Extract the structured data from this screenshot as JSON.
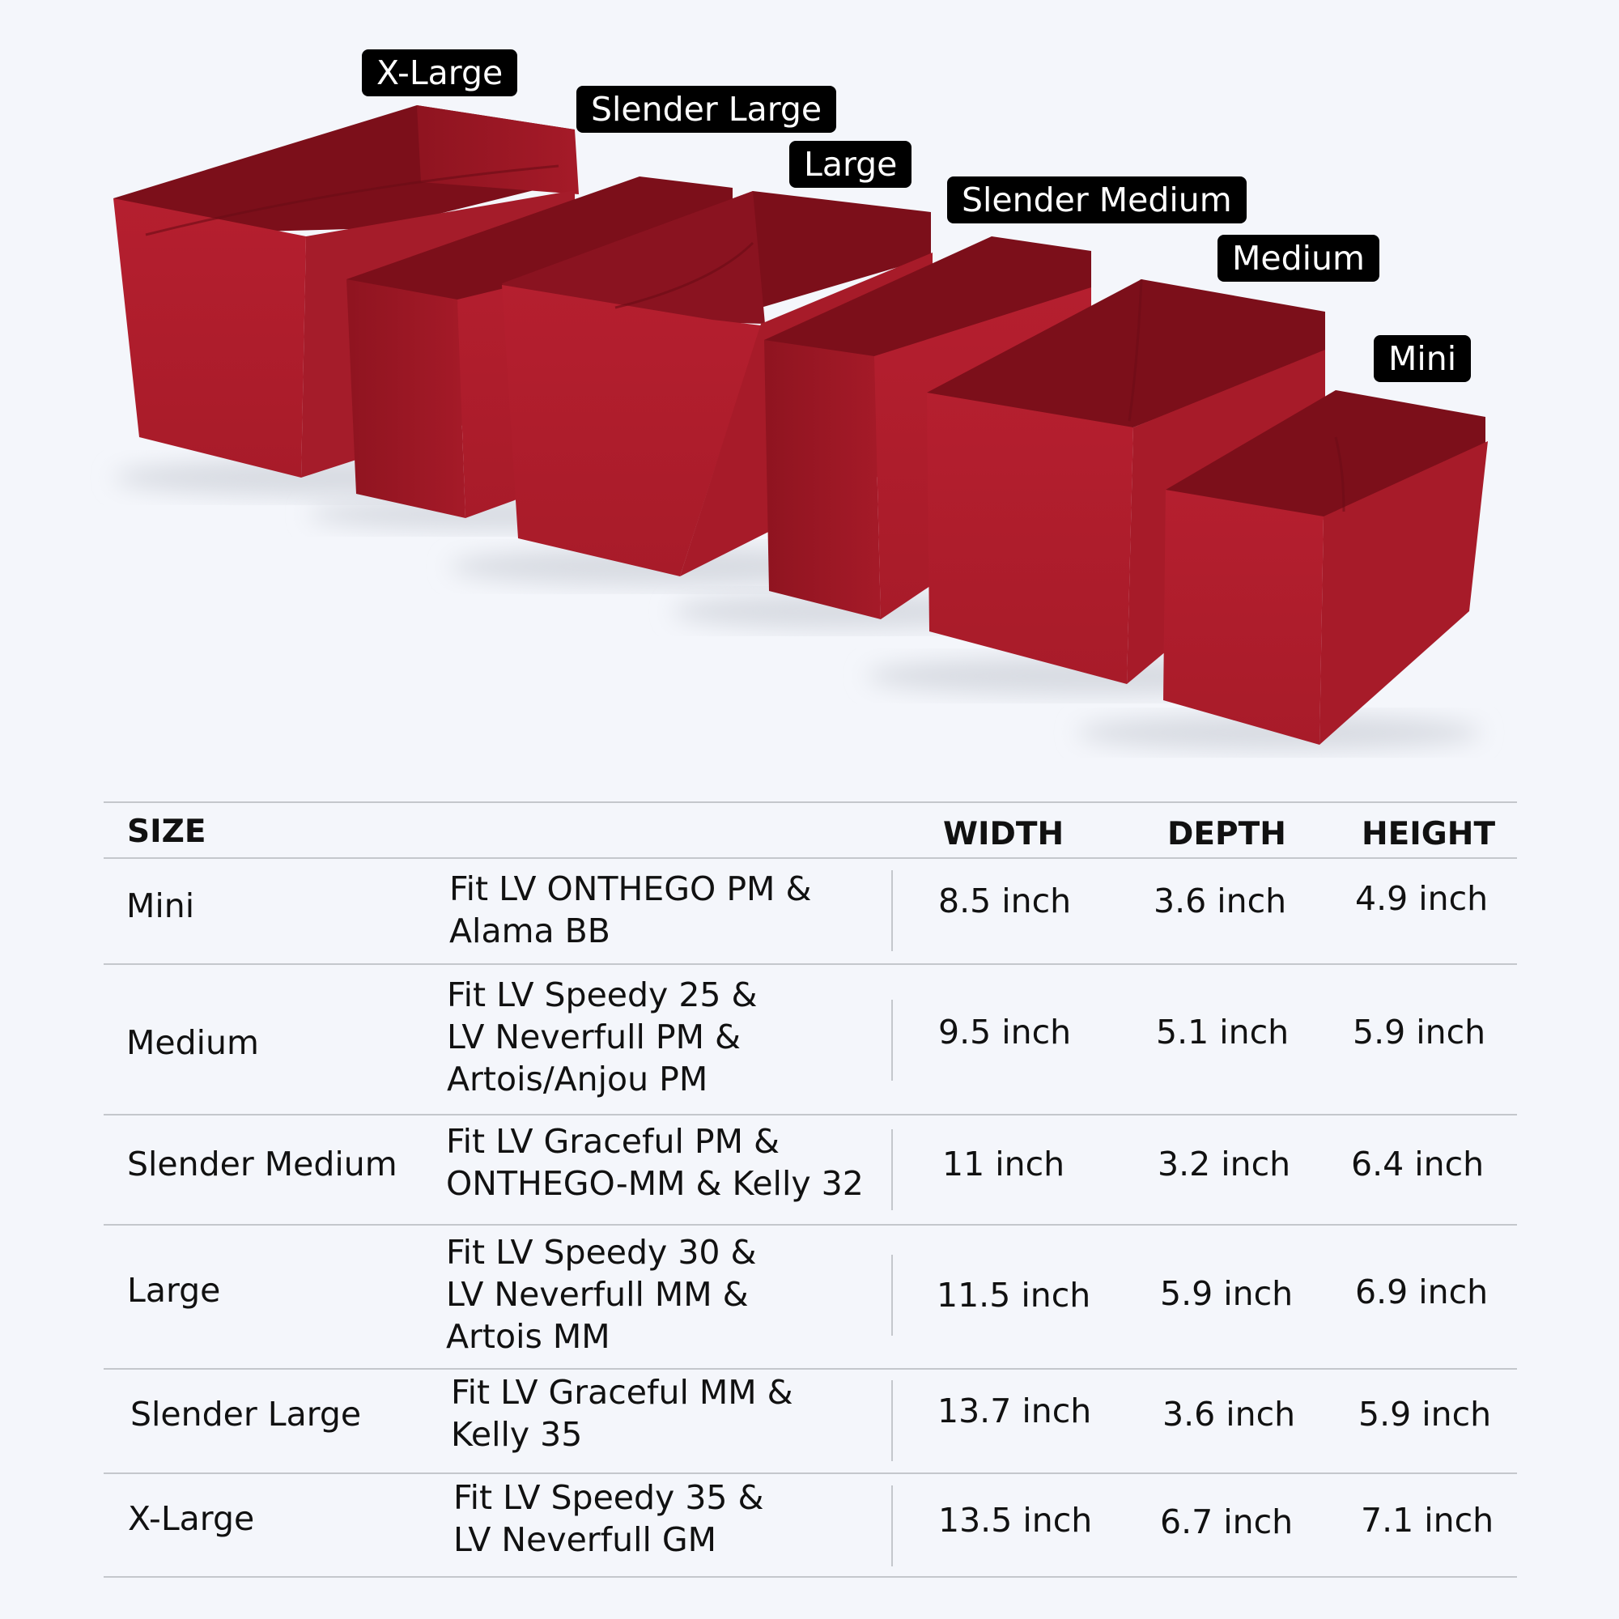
{
  "colors": {
    "background": "#f4f6fb",
    "product": "#b01e2d",
    "label_bg": "#000000",
    "label_text": "#ffffff",
    "rule": "#c4c7cc"
  },
  "product_labels": [
    "X-Large",
    "Slender Large",
    "Large",
    "Slender Medium",
    "Medium",
    "Mini"
  ],
  "table": {
    "headers": {
      "size": "SIZE",
      "width": "WIDTH",
      "depth": "DEPTH",
      "height": "HEIGHT"
    },
    "rows": [
      {
        "size": "Mini",
        "fit": [
          "Fit LV ONTHEGO PM &",
          "Alama BB"
        ],
        "width": "8.5 inch",
        "depth": "3.6 inch",
        "height": "4.9 inch"
      },
      {
        "size": "Medium",
        "fit": [
          "Fit LV Speedy 25 &",
          "LV Neverfull PM &",
          "Artois/Anjou PM"
        ],
        "width": "9.5 inch",
        "depth": "5.1 inch",
        "height": "5.9 inch"
      },
      {
        "size": "Slender Medium",
        "fit": [
          "Fit LV Graceful PM &",
          "ONTHEGO-MM & Kelly 32"
        ],
        "width": "11 inch",
        "depth": "3.2 inch",
        "height": "6.4 inch"
      },
      {
        "size": "Large",
        "fit": [
          "Fit LV Speedy 30 &",
          "LV Neverfull MM &",
          "Artois MM"
        ],
        "width": "11.5 inch",
        "depth": "5.9 inch",
        "height": "6.9 inch"
      },
      {
        "size": "Slender Large",
        "fit": [
          "Fit LV Graceful MM &",
          "Kelly 35"
        ],
        "width": "13.7 inch",
        "depth": "3.6 inch",
        "height": "5.9 inch"
      },
      {
        "size": "X-Large",
        "fit": [
          "Fit LV Speedy 35 &",
          "LV Neverfull GM"
        ],
        "width": "13.5 inch",
        "depth": "6.7 inch",
        "height": "7.1 inch"
      }
    ]
  }
}
